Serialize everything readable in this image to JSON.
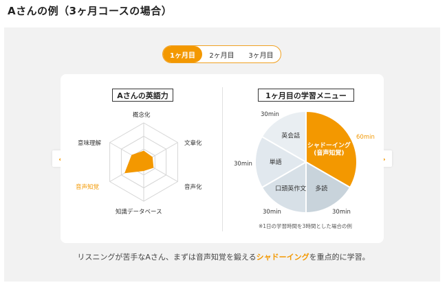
{
  "page": {
    "title": "Aさんの例（3ヶ月コースの場合）"
  },
  "tabs": [
    {
      "label": "1ヶ月目",
      "active": true
    },
    {
      "label": "2ヶ月目",
      "active": false
    },
    {
      "label": "3ヶ月目",
      "active": false
    }
  ],
  "left_panel": {
    "title": "Aさんの英語力",
    "axes": [
      "概念化",
      "文章化",
      "音声化",
      "知識データベース",
      "音声知覚",
      "意味理解"
    ],
    "highlight_axis": "音声知覚",
    "levels": [
      0.28,
      0.25,
      0.28,
      0.22,
      0.55,
      0.35
    ]
  },
  "right_panel": {
    "title": "1ヶ月目の学習メニュー",
    "slices": [
      {
        "label": "シャドーイング\n(音声知覚)",
        "duration": "60min",
        "minutes": 60,
        "color": "#f39800"
      },
      {
        "label": "多読",
        "duration": "30min",
        "minutes": 30,
        "color": "#c8d3db"
      },
      {
        "label": "口頭英作文",
        "duration": "30min",
        "minutes": 30,
        "color": "#d7e0e7"
      },
      {
        "label": "単語",
        "duration": "30min",
        "minutes": 30,
        "color": "#e1e8ee"
      },
      {
        "label": "英会話",
        "duration": "30min",
        "minutes": 30,
        "color": "#e9eef2"
      }
    ],
    "note": "※1日の学習時間を3時間とした場合の例"
  },
  "caption": {
    "before": "リスニングが苦手なAさん、まずは音声知覚を鍛える",
    "highlight": "シャドーイング",
    "after": "を重点的に学習。"
  },
  "colors": {
    "accent": "#f39800",
    "panel_bg": "#f2f2f2"
  },
  "nav": {
    "prev_icon": "chevron-left-icon",
    "next_icon": "chevron-right-icon"
  }
}
